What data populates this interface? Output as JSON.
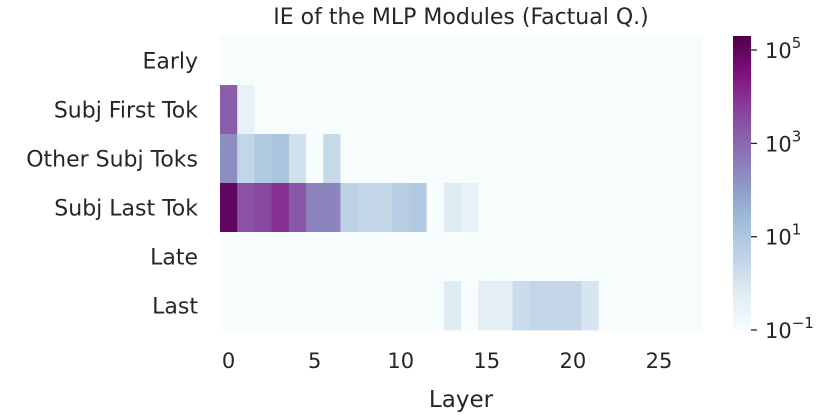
{
  "chart_data": {
    "type": "heatmap",
    "title": "IE of the MLP Modules (Factual Q.)",
    "xlabel": "Layer",
    "ylabel": "",
    "x_ticks": [
      "0",
      "5",
      "10",
      "15",
      "20",
      "25"
    ],
    "x_tick_values": [
      0,
      5,
      10,
      15,
      20,
      25
    ],
    "n_layers": 28,
    "rows": [
      "Early",
      "Subj First Tok",
      "Other Subj Toks",
      "Subj Last Tok",
      "Late",
      "Last"
    ],
    "colorbar": {
      "scale": "log",
      "min": 0.1,
      "max": 200000,
      "ticks": [
        {
          "base": "10",
          "exp": "−1",
          "value": 0.1
        },
        {
          "base": "10",
          "exp": "1",
          "value": 10
        },
        {
          "base": "10",
          "exp": "3",
          "value": 1000
        },
        {
          "base": "10",
          "exp": "5",
          "value": 100000
        }
      ],
      "colormap": "BuPu"
    },
    "values": [
      [
        0.1,
        0.1,
        0.1,
        0.1,
        0.1,
        0.1,
        0.1,
        0.1,
        0.1,
        0.1,
        0.1,
        0.1,
        0.1,
        0.1,
        0.1,
        0.1,
        0.1,
        0.1,
        0.1,
        0.1,
        0.1,
        0.1,
        0.1,
        0.1,
        0.1,
        0.1,
        0.1,
        0.1
      ],
      [
        1500,
        0.3,
        0.1,
        0.1,
        0.1,
        0.1,
        0.1,
        0.1,
        0.1,
        0.1,
        0.1,
        0.1,
        0.1,
        0.1,
        0.1,
        0.1,
        0.1,
        0.1,
        0.1,
        0.1,
        0.1,
        0.1,
        0.1,
        0.1,
        0.1,
        0.1,
        0.1,
        0.1
      ],
      [
        200,
        3,
        8,
        12,
        1.5,
        0.1,
        2.5,
        0.1,
        0.1,
        0.1,
        0.1,
        0.1,
        0.1,
        0.1,
        0.1,
        0.1,
        0.1,
        0.1,
        0.1,
        0.1,
        0.1,
        0.1,
        0.1,
        0.1,
        0.1,
        0.1,
        0.1,
        0.1
      ],
      [
        100000,
        2500,
        4000,
        10000,
        2000,
        300,
        300,
        4,
        3,
        3,
        6,
        8,
        0.1,
        0.6,
        0.3,
        0.1,
        0.1,
        0.1,
        0.1,
        0.1,
        0.1,
        0.1,
        0.1,
        0.1,
        0.1,
        0.1,
        0.1,
        0.1
      ],
      [
        0.1,
        0.1,
        0.1,
        0.1,
        0.1,
        0.1,
        0.1,
        0.1,
        0.1,
        0.1,
        0.1,
        0.1,
        0.1,
        0.1,
        0.1,
        0.1,
        0.1,
        0.1,
        0.1,
        0.1,
        0.1,
        0.1,
        0.1,
        0.1,
        0.1,
        0.1,
        0.1,
        0.1
      ],
      [
        0.1,
        0.1,
        0.1,
        0.1,
        0.1,
        0.1,
        0.1,
        0.1,
        0.1,
        0.1,
        0.1,
        0.1,
        0.1,
        0.6,
        0.1,
        0.5,
        0.5,
        2,
        3,
        3,
        3,
        1,
        0.1,
        0.1,
        0.1,
        0.1,
        0.1,
        0.1
      ]
    ]
  }
}
